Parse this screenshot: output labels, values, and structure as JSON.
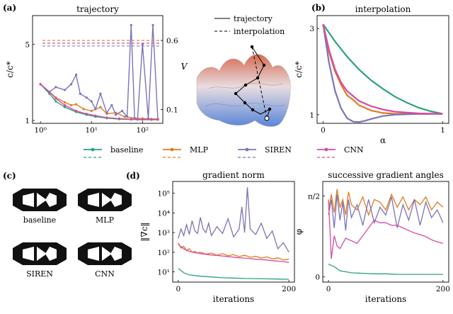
{
  "panels": {
    "a": "(a)",
    "b": "(b)",
    "c": "(c)",
    "d": "(d)"
  },
  "colors": {
    "baseline": "#2ca07f",
    "mlp": "#e07b1f",
    "siren": "#7b74b8",
    "cnn": "#d94aa0",
    "surface_hi": "#d66a52",
    "surface_lo": "#5a86d8"
  },
  "legend": {
    "entries": [
      {
        "key": "baseline",
        "label": "baseline"
      },
      {
        "key": "mlp",
        "label": "MLP"
      },
      {
        "key": "siren",
        "label": "SIREN"
      },
      {
        "key": "cnn",
        "label": "CNN"
      }
    ]
  },
  "landscape": {
    "legend_trajectory": "trajectory",
    "legend_interpolation": "interpolation"
  },
  "designs": [
    {
      "label": "baseline"
    },
    {
      "label": "MLP"
    },
    {
      "label": "SIREN"
    },
    {
      "label": "CNN"
    }
  ],
  "chart_data": [
    {
      "id": "trajectory",
      "type": "line",
      "title": "trajectory",
      "xlabel": "",
      "ylabel": "c/c*",
      "y2label": "V",
      "xscale": "log",
      "xlim": [
        0.7,
        250
      ],
      "ylim": [
        0.85,
        6.5
      ],
      "y2lim": [
        0.0,
        0.78
      ],
      "x_ticks": [
        {
          "v": 1,
          "label": "10⁰"
        },
        {
          "v": 10,
          "label": "10¹"
        },
        {
          "v": 100,
          "label": "10²"
        }
      ],
      "y_ticks": [
        {
          "v": 1,
          "label": "1"
        },
        {
          "v": 5,
          "label": "5"
        }
      ],
      "y2_ticks": [
        {
          "v": 0.1,
          "label": "0.1"
        },
        {
          "v": 0.6,
          "label": "0.6"
        }
      ],
      "series": [
        {
          "name": "baseline",
          "color": "#2ca07f",
          "x": [
            1,
            1.5,
            2,
            3,
            5,
            8,
            12,
            20,
            35,
            60,
            100,
            150,
            200
          ],
          "y": [
            2.9,
            2.4,
            2.0,
            1.7,
            1.45,
            1.3,
            1.2,
            1.12,
            1.07,
            1.05,
            1.04,
            1.04,
            1.04
          ]
        },
        {
          "name": "MLP",
          "color": "#e07b1f",
          "x": [
            1,
            1.5,
            2,
            3,
            4,
            5,
            7,
            10,
            15,
            20,
            30,
            45,
            70,
            100,
            150,
            200
          ],
          "y": [
            2.9,
            2.5,
            2.2,
            1.95,
            1.8,
            1.85,
            1.6,
            1.5,
            1.7,
            1.35,
            1.4,
            1.2,
            1.12,
            1.1,
            1.08,
            1.08
          ]
        },
        {
          "name": "SIREN",
          "color": "#7b74b8",
          "x": [
            1,
            1.5,
            2,
            3,
            4,
            5,
            6,
            8,
            10,
            12,
            15,
            20,
            25,
            30,
            40,
            50,
            60,
            70,
            80,
            100,
            130,
            160,
            200
          ],
          "y": [
            2.9,
            2.5,
            2.75,
            2.6,
            2.9,
            3.4,
            2.4,
            2.2,
            2.0,
            1.6,
            2.4,
            1.4,
            1.8,
            1.3,
            1.5,
            1.2,
            6.0,
            1.1,
            1.05,
            5.0,
            1.1,
            6.0,
            1.05
          ]
        },
        {
          "name": "CNN",
          "color": "#d94aa0",
          "x": [
            1,
            1.5,
            2,
            3,
            5,
            8,
            12,
            20,
            35,
            60,
            100,
            150,
            200
          ],
          "y": [
            2.9,
            2.5,
            2.15,
            1.8,
            1.5,
            1.35,
            1.25,
            1.15,
            1.1,
            1.07,
            1.06,
            1.05,
            1.05
          ]
        }
      ],
      "v_series": [
        {
          "name": "baseline V",
          "color": "#2ca07f",
          "y": 0.58
        },
        {
          "name": "MLP V",
          "color": "#e07b1f",
          "y": 0.6
        },
        {
          "name": "SIREN V",
          "color": "#7b74b8",
          "y": 0.56
        },
        {
          "name": "CNN V",
          "color": "#d94aa0",
          "y": 0.58
        }
      ]
    },
    {
      "id": "interpolation",
      "type": "line",
      "title": "interpolation",
      "xlabel": "α",
      "ylabel": "c/c*",
      "xlim": [
        -0.05,
        1.05
      ],
      "ylim": [
        0.8,
        3.3
      ],
      "x_ticks": [
        {
          "v": 0,
          "label": "0"
        },
        {
          "v": 1,
          "label": "1"
        }
      ],
      "y_ticks": [
        {
          "v": 1,
          "label": "1"
        },
        {
          "v": 3,
          "label": "3"
        }
      ],
      "series": [
        {
          "name": "baseline",
          "color": "#2ca07f",
          "x": [
            0,
            0.1,
            0.2,
            0.3,
            0.4,
            0.5,
            0.6,
            0.7,
            0.8,
            0.9,
            1.0
          ],
          "y": [
            3.1,
            2.7,
            2.35,
            2.05,
            1.8,
            1.6,
            1.42,
            1.28,
            1.16,
            1.08,
            1.02
          ]
        },
        {
          "name": "MLP",
          "color": "#e07b1f",
          "x": [
            0,
            0.05,
            0.1,
            0.15,
            0.2,
            0.25,
            0.3,
            0.4,
            0.5,
            0.6,
            0.8,
            1.0
          ],
          "y": [
            3.1,
            2.45,
            2.0,
            1.7,
            1.45,
            1.35,
            1.22,
            1.1,
            1.04,
            1.02,
            1.02,
            1.02
          ]
        },
        {
          "name": "SIREN",
          "color": "#7b74b8",
          "x": [
            0,
            0.05,
            0.1,
            0.15,
            0.2,
            0.25,
            0.3,
            0.35,
            0.4,
            0.5,
            0.6,
            0.8,
            1.0
          ],
          "y": [
            3.1,
            2.2,
            1.55,
            1.15,
            0.92,
            0.84,
            0.83,
            0.86,
            0.9,
            0.97,
            1.0,
            1.02,
            1.02
          ]
        },
        {
          "name": "CNN",
          "color": "#d94aa0",
          "x": [
            0,
            0.05,
            0.1,
            0.15,
            0.2,
            0.3,
            0.4,
            0.5,
            0.6,
            0.8,
            1.0
          ],
          "y": [
            3.1,
            2.5,
            2.05,
            1.75,
            1.55,
            1.32,
            1.2,
            1.12,
            1.07,
            1.03,
            1.02
          ]
        }
      ]
    },
    {
      "id": "gradient_norm",
      "type": "line",
      "title": "gradient norm",
      "xlabel": "iterations",
      "ylabel": "‖∇c‖",
      "yscale": "log",
      "xlim": [
        -10,
        210
      ],
      "ylim": [
        3,
        400000
      ],
      "x_ticks": [
        {
          "v": 0,
          "label": "0"
        },
        {
          "v": 200,
          "label": "200"
        }
      ],
      "y_ticks": [
        {
          "v": 10,
          "label": "10¹"
        },
        {
          "v": 100,
          "label": "10²"
        },
        {
          "v": 1000,
          "label": "10³"
        },
        {
          "v": 10000,
          "label": "10⁴"
        },
        {
          "v": 100000,
          "label": "10⁵"
        }
      ],
      "series": [
        {
          "name": "baseline",
          "color": "#2ca07f",
          "x": [
            0,
            10,
            20,
            40,
            60,
            80,
            100,
            120,
            140,
            160,
            180,
            200
          ],
          "y": [
            15,
            9,
            7,
            6,
            5.5,
            5,
            4.8,
            4.6,
            4.5,
            4.4,
            4.3,
            4.2
          ]
        },
        {
          "name": "MLP",
          "color": "#e07b1f",
          "x": [
            0,
            5,
            10,
            15,
            20,
            25,
            30,
            35,
            40,
            50,
            60,
            70,
            80,
            90,
            100,
            110,
            120,
            130,
            140,
            150,
            160,
            170,
            180,
            190,
            200
          ],
          "y": [
            300,
            160,
            200,
            120,
            150,
            100,
            110,
            90,
            100,
            80,
            90,
            70,
            85,
            65,
            75,
            60,
            70,
            55,
            62,
            50,
            58,
            45,
            52,
            40,
            45
          ]
        },
        {
          "name": "SIREN",
          "color": "#7b74b8",
          "x": [
            0,
            5,
            10,
            15,
            20,
            25,
            30,
            35,
            40,
            45,
            50,
            55,
            60,
            70,
            80,
            90,
            100,
            110,
            115,
            120,
            125,
            130,
            140,
            150,
            160,
            170,
            180,
            190,
            200
          ],
          "y": [
            500,
            1500,
            700,
            2500,
            800,
            4000,
            1200,
            900,
            6000,
            1500,
            1000,
            3000,
            700,
            2000,
            900,
            5000,
            600,
            1500,
            20000,
            1000,
            200000,
            1500,
            800,
            3000,
            500,
            1200,
            150,
            300,
            100
          ]
        },
        {
          "name": "CNN",
          "color": "#d94aa0",
          "x": [
            0,
            10,
            20,
            30,
            40,
            50,
            60,
            70,
            80,
            90,
            100,
            110,
            120,
            130,
            140,
            150,
            160,
            170,
            180,
            190,
            200
          ],
          "y": [
            250,
            150,
            110,
            95,
            85,
            78,
            72,
            68,
            64,
            60,
            56,
            52,
            50,
            47,
            44,
            42,
            40,
            37,
            35,
            33,
            30
          ]
        }
      ]
    },
    {
      "id": "gradient_angles",
      "type": "line",
      "title": "successive gradient angles",
      "xlabel": "iterations",
      "ylabel": "φ",
      "xlim": [
        -10,
        210
      ],
      "ylim": [
        -0.1,
        1.85
      ],
      "x_ticks": [
        {
          "v": 0,
          "label": "0"
        },
        {
          "v": 200,
          "label": "200"
        }
      ],
      "y_ticks": [
        {
          "v": 0,
          "label": "0"
        },
        {
          "v": 1.5708,
          "label": "π/2"
        }
      ],
      "series": [
        {
          "name": "baseline",
          "color": "#2ca07f",
          "x": [
            0,
            5,
            10,
            20,
            30,
            40,
            60,
            80,
            100,
            120,
            140,
            160,
            180,
            200
          ],
          "y": [
            0.25,
            0.22,
            0.2,
            0.12,
            0.1,
            0.08,
            0.07,
            0.06,
            0.06,
            0.05,
            0.05,
            0.05,
            0.05,
            0.05
          ]
        },
        {
          "name": "MLP",
          "color": "#e07b1f",
          "x": [
            0,
            5,
            10,
            15,
            20,
            25,
            30,
            35,
            40,
            50,
            60,
            70,
            80,
            90,
            100,
            110,
            120,
            130,
            140,
            150,
            160,
            170,
            180,
            190,
            200
          ],
          "y": [
            1.3,
            1.6,
            1.25,
            1.7,
            1.35,
            1.5,
            1.2,
            1.65,
            1.4,
            1.3,
            1.55,
            1.2,
            1.5,
            1.45,
            1.3,
            1.6,
            1.35,
            1.55,
            1.3,
            1.5,
            1.4,
            1.55,
            1.3,
            1.45,
            1.35
          ]
        },
        {
          "name": "SIREN",
          "color": "#7b74b8",
          "x": [
            0,
            5,
            10,
            15,
            20,
            25,
            30,
            35,
            40,
            50,
            60,
            70,
            80,
            90,
            100,
            110,
            120,
            130,
            140,
            150,
            160,
            170,
            180,
            190,
            200
          ],
          "y": [
            1.2,
            1.5,
            0.95,
            1.6,
            1.1,
            1.45,
            0.9,
            1.5,
            1.15,
            1.4,
            1.0,
            1.5,
            1.05,
            1.35,
            1.2,
            1.55,
            0.95,
            1.4,
            1.1,
            1.5,
            1.0,
            1.45,
            1.15,
            1.3,
            1.05
          ]
        },
        {
          "name": "CNN",
          "color": "#d94aa0",
          "x": [
            0,
            5,
            10,
            15,
            20,
            30,
            40,
            50,
            60,
            70,
            80,
            90,
            100,
            110,
            120,
            130,
            140,
            150,
            160,
            170,
            180,
            190,
            200
          ],
          "y": [
            1.5,
            0.35,
            0.8,
            0.6,
            0.55,
            0.75,
            0.7,
            0.65,
            0.8,
            0.95,
            1.1,
            1.05,
            1.05,
            1.0,
            1.0,
            0.95,
            0.9,
            0.85,
            0.82,
            0.78,
            0.72,
            0.68,
            0.65
          ]
        }
      ]
    }
  ]
}
